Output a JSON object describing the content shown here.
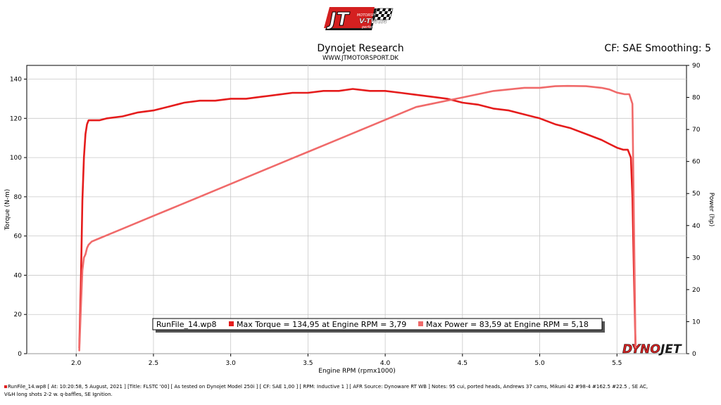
{
  "header": {
    "logo_brand": "JT",
    "logo_sub1": "MOTORSPORT",
    "logo_sub2": "V-TWIN",
    "logo_sub3": "performance",
    "title": "Dynojet Research",
    "website": "WWW.JTMOTORSPORT.DK",
    "cf_smoothing": "CF: SAE Smoothing: 5"
  },
  "watermark": {
    "text1": "DYNO",
    "text2": "JET"
  },
  "legend": {
    "run_file": "RunFile_14.wp8",
    "max_torque": "Max Torque = 134,95 at Engine RPM = 3,79",
    "max_power": "Max Power = 83,59 at Engine RPM = 5,18"
  },
  "footer": {
    "line1": "RunFile_14.wp8 [ At: 10:20:58, 5 August, 2021 ] [Title: FLSTC '00] [ As tested on Dynojet Model 250i ] [ CF: SAE 1,00 ] [ RPM: Inductive 1 ] [ AFR Source: Dynoware RT WB ] Notes: 95 cui, ported heads, Andrews 37 cams, Mikuni 42 #98-4 #162.5 #22.5 , SE AC,",
    "line2": "V&H long shots 2-2 w. q-baffles, SE Ignition."
  },
  "colors": {
    "torque": "#e51c1c",
    "power": "#f06a6a",
    "plot_bg": "#ffffff",
    "grid": "#c8c8c8"
  },
  "chart_data": {
    "type": "line",
    "xlabel": "Engine RPM (rpmx1000)",
    "ylabel_left": "Torque (N-m)",
    "ylabel_right": "Power (hp)",
    "xlim": [
      1.68,
      5.95
    ],
    "ylim_left": [
      0,
      147
    ],
    "ylim_right": [
      0,
      90
    ],
    "x_ticks": [
      "2.0",
      "2.5",
      "3.0",
      "3.5",
      "4.0",
      "4.5",
      "5.0",
      "5.5"
    ],
    "y_ticks_left": [
      "0",
      "20",
      "40",
      "60",
      "80",
      "100",
      "120",
      "140"
    ],
    "y_ticks_right": [
      "0",
      "10",
      "20",
      "30",
      "40",
      "50",
      "60",
      "70",
      "80",
      "90"
    ],
    "grid": true,
    "series": [
      {
        "name": "Max Torque",
        "axis": "left",
        "x": [
          2.02,
          2.03,
          2.04,
          2.05,
          2.06,
          2.07,
          2.08,
          2.1,
          2.15,
          2.2,
          2.3,
          2.4,
          2.5,
          2.6,
          2.7,
          2.8,
          2.9,
          3.0,
          3.1,
          3.2,
          3.3,
          3.4,
          3.5,
          3.6,
          3.7,
          3.79,
          3.9,
          4.0,
          4.1,
          4.2,
          4.3,
          4.4,
          4.5,
          4.6,
          4.7,
          4.8,
          4.9,
          5.0,
          5.1,
          5.2,
          5.3,
          5.4,
          5.45,
          5.5,
          5.54,
          5.57,
          5.59,
          5.6,
          5.61,
          5.62
        ],
        "y": [
          3,
          35,
          78,
          100,
          112,
          117,
          119,
          119,
          119,
          120,
          121,
          123,
          124,
          126,
          128,
          129,
          129,
          130,
          130,
          131,
          132,
          133,
          133,
          134,
          134,
          135,
          134,
          134,
          133,
          132,
          131,
          130,
          128,
          127,
          125,
          124,
          122,
          120,
          117,
          115,
          112,
          109,
          107,
          105,
          104,
          104,
          100,
          80,
          40,
          4
        ]
      },
      {
        "name": "Max Power",
        "axis": "right",
        "x": [
          2.02,
          2.03,
          2.04,
          2.05,
          2.06,
          2.07,
          2.08,
          2.1,
          2.15,
          2.2,
          2.3,
          2.4,
          2.5,
          2.6,
          2.7,
          2.8,
          2.9,
          3.0,
          3.1,
          3.2,
          3.3,
          3.4,
          3.5,
          3.6,
          3.7,
          3.8,
          3.9,
          4.0,
          4.1,
          4.2,
          4.3,
          4.4,
          4.5,
          4.6,
          4.7,
          4.8,
          4.9,
          5.0,
          5.1,
          5.18,
          5.3,
          5.4,
          5.45,
          5.5,
          5.55,
          5.58,
          5.6,
          5.61,
          5.62
        ],
        "y": [
          1,
          14,
          26,
          30,
          31,
          33,
          34,
          35,
          36,
          37,
          39,
          41,
          43,
          45,
          47,
          49,
          51,
          53,
          55,
          57,
          59,
          61,
          63,
          65,
          67,
          69,
          71,
          73,
          75,
          77,
          78,
          79,
          80,
          81,
          82,
          82.5,
          83,
          83,
          83.5,
          83.6,
          83.5,
          83,
          82.5,
          81.5,
          81,
          81,
          78,
          40,
          2
        ]
      }
    ]
  }
}
